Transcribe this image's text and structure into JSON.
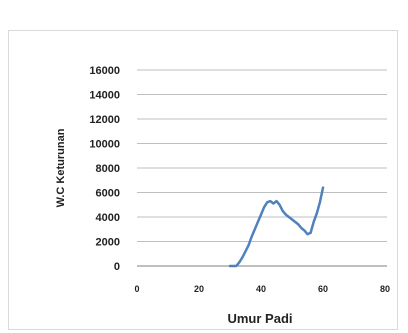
{
  "chart_data": {
    "type": "line",
    "title": "",
    "xlabel": "Umur Padi",
    "ylabel": "W.C Keturunan",
    "xlim": [
      0,
      80
    ],
    "ylim": [
      0,
      16000
    ],
    "x_ticks": [
      "0",
      "20",
      "40",
      "60",
      "80"
    ],
    "y_ticks": [
      "0",
      "2000",
      "4000",
      "6000",
      "8000",
      "10000",
      "12000",
      "14000",
      "16000"
    ],
    "grid": true,
    "legend": "none",
    "series": [
      {
        "color": "#4f81bd",
        "x": [
          30,
          31,
          32,
          33,
          34,
          35,
          36,
          37,
          38,
          39,
          40,
          41,
          42,
          43,
          44,
          45,
          46,
          47,
          48,
          49,
          50,
          51,
          52,
          53,
          54,
          55,
          56,
          57,
          58,
          59,
          60
        ],
        "y": [
          0,
          0,
          0,
          300,
          700,
          1200,
          1700,
          2400,
          3000,
          3600,
          4200,
          4800,
          5200,
          5300,
          5100,
          5300,
          5000,
          4500,
          4200,
          4000,
          3800,
          3600,
          3400,
          3100,
          2900,
          2600,
          2700,
          3600,
          4300,
          5200,
          6400
        ]
      }
    ]
  }
}
